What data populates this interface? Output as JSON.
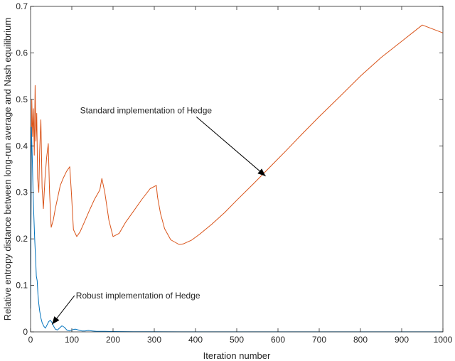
{
  "chart_data": {
    "type": "line",
    "title": "",
    "xlabel": "Iteration number",
    "ylabel": "Relative entropy distance between long-run average and Nash equilibrium",
    "xlim": [
      0,
      1000
    ],
    "ylim": [
      0,
      0.7
    ],
    "xticks": [
      0,
      100,
      200,
      300,
      400,
      500,
      600,
      700,
      800,
      900,
      1000
    ],
    "yticks": [
      0,
      0.1,
      0.2,
      0.3,
      0.4,
      0.5,
      0.6,
      0.7
    ],
    "xtick_labels": [
      "0",
      "100",
      "200",
      "300",
      "400",
      "500",
      "600",
      "700",
      "800",
      "900",
      "1000"
    ],
    "ytick_labels": [
      "0",
      "0.1",
      "0.2",
      "0.3",
      "0.4",
      "0.5",
      "0.6",
      "0.7"
    ],
    "grid": false,
    "legend": "none",
    "series": [
      {
        "color": "#d95319",
        "x": [
          0,
          3,
          5,
          7,
          9,
          11,
          13,
          15,
          17,
          20,
          22,
          25,
          28,
          31,
          35,
          39,
          43,
          46,
          50,
          55,
          60,
          66,
          72,
          79,
          87,
          95,
          99,
          104,
          112,
          120,
          130,
          142,
          155,
          168,
          173,
          180,
          190,
          200,
          215,
          230,
          250,
          270,
          290,
          305,
          308,
          315,
          325,
          340,
          360,
          370,
          390,
          410,
          440,
          470,
          500,
          540,
          580,
          620,
          660,
          700,
          750,
          800,
          850,
          900,
          950,
          1000
        ],
        "y": [
          0.1,
          0.5,
          0.42,
          0.48,
          0.38,
          0.53,
          0.41,
          0.47,
          0.33,
          0.3,
          0.39,
          0.456,
          0.31,
          0.265,
          0.33,
          0.375,
          0.405,
          0.3,
          0.225,
          0.24,
          0.265,
          0.29,
          0.315,
          0.33,
          0.345,
          0.355,
          0.3,
          0.22,
          0.205,
          0.215,
          0.235,
          0.26,
          0.285,
          0.305,
          0.33,
          0.3,
          0.24,
          0.205,
          0.212,
          0.235,
          0.26,
          0.285,
          0.308,
          0.315,
          0.29,
          0.255,
          0.222,
          0.198,
          0.188,
          0.189,
          0.197,
          0.21,
          0.232,
          0.256,
          0.283,
          0.318,
          0.354,
          0.39,
          0.427,
          0.463,
          0.506,
          0.55,
          0.59,
          0.625,
          0.66,
          0.643
        ]
      },
      {
        "color": "#0072bd",
        "x": [
          0,
          2,
          4,
          6,
          8,
          10,
          12,
          14,
          16,
          18,
          20,
          22,
          25,
          28,
          32,
          36,
          40,
          44,
          48,
          52,
          56,
          60,
          65,
          70,
          76,
          82,
          88,
          94,
          100,
          108,
          116,
          124,
          132,
          140,
          150,
          160,
          180,
          200,
          250,
          300,
          400,
          500,
          600,
          700,
          800,
          900,
          1000
        ],
        "y": [
          0.05,
          0.44,
          0.38,
          0.3,
          0.25,
          0.2,
          0.16,
          0.12,
          0.11,
          0.08,
          0.06,
          0.045,
          0.03,
          0.02,
          0.012,
          0.008,
          0.015,
          0.022,
          0.025,
          0.02,
          0.012,
          0.006,
          0.004,
          0.008,
          0.013,
          0.01,
          0.004,
          0.002,
          0.004,
          0.006,
          0.004,
          0.002,
          0.002,
          0.003,
          0.002,
          0.001,
          0.001,
          0.0008,
          0.0005,
          0.0003,
          0.0002,
          0.0001,
          0.0001,
          0.0001,
          0.0001,
          0.0001,
          0.0001
        ]
      }
    ],
    "annotations": [
      {
        "text": "Standard implementation of Hedge",
        "text_at": [
          120,
          0.47
        ],
        "arrow_to": [
          570,
          0.335
        ]
      },
      {
        "text": "Robust implementation of Hedge",
        "text_at": [
          110,
          0.072
        ],
        "arrow_to": [
          52,
          0.016
        ]
      }
    ]
  }
}
